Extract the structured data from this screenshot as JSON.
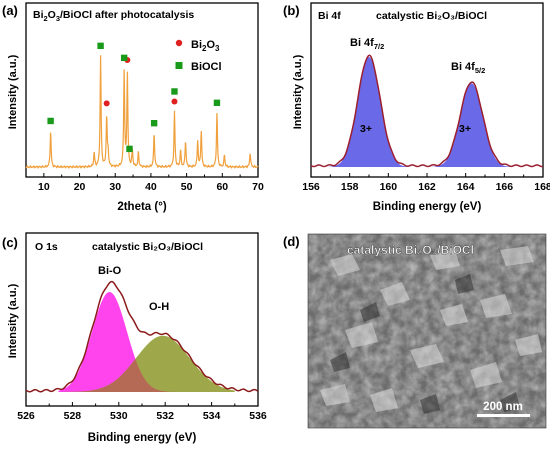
{
  "panels": {
    "a": {
      "label": "(a)",
      "title_main": "Bi",
      "title_sub1": "2",
      "title_mid": "O",
      "title_sub2": "3",
      "title_end": "/BiOCl after photocatalysis",
      "xlabel": "2theta (°)",
      "ylabel": "Intensity (a.u.)",
      "x_ticks": [
        "10",
        "20",
        "30",
        "40",
        "50",
        "60",
        "70"
      ],
      "legend": [
        {
          "marker": "circle",
          "label_main": "Bi",
          "label_sub1": "2",
          "label_mid": "O",
          "label_sub2": "3"
        },
        {
          "marker": "square",
          "label_main": "BiOCl"
        }
      ]
    },
    "b": {
      "label": "(b)",
      "header_left": "Bi 4f",
      "header_right": "catalystic Bi₂O₃/BiOCl",
      "xlabel": "Binding energy (eV)",
      "ylabel": "Intensity (a.u.)",
      "x_ticks": [
        "156",
        "158",
        "160",
        "162",
        "164",
        "166",
        "168"
      ],
      "peak1_main": "Bi 4f",
      "peak1_sub": "7/2",
      "peak2_main": "Bi 4f",
      "peak2_sub": "5/2",
      "area_label_1": "3+",
      "area_label_2": "3+"
    },
    "c": {
      "label": "(c)",
      "header_left": "O 1s",
      "header_right": "catalystic Bi₂O₃/BiOCl",
      "xlabel": "Binding energy (eV)",
      "ylabel": "Intensity (a.u.)",
      "x_ticks": [
        "526",
        "528",
        "530",
        "532",
        "534",
        "536"
      ],
      "peak1": "Bi-O",
      "peak2": "O-H"
    },
    "d": {
      "label": "(d)",
      "title": "catalystic Bi₂O₃/BiOCl",
      "scale_bar": "200 nm"
    }
  },
  "colors": {
    "xrd_line": "#f0a03c",
    "bi2o3_marker": "#e02020",
    "biocl_marker": "#1a9a1a",
    "bi4f_fill": "#6a6ae8",
    "bi4f_line": "#9a1f2f",
    "bio_fill": "#ff44ee",
    "oh_fill": "#9ea84a",
    "overlap_fill": "#b56a55",
    "envelope": "#8b1a1a"
  },
  "chart_data": [
    {
      "type": "line",
      "panel": "a",
      "title": "Bi2O3/BiOCl after photocatalysis",
      "xlabel": "2theta (°)",
      "ylabel": "Intensity (a.u.)",
      "xlim": [
        5,
        70
      ],
      "peaks": [
        {
          "x": 11.9,
          "h": 0.3
        },
        {
          "x": 24.1,
          "h": 0.12
        },
        {
          "x": 25.9,
          "h": 0.92
        },
        {
          "x": 27.6,
          "h": 0.42
        },
        {
          "x": 28.0,
          "h": 0.12
        },
        {
          "x": 32.5,
          "h": 0.8
        },
        {
          "x": 33.4,
          "h": 0.78
        },
        {
          "x": 34.8,
          "h": 0.14
        },
        {
          "x": 36.5,
          "h": 0.12
        },
        {
          "x": 40.9,
          "h": 0.28
        },
        {
          "x": 46.6,
          "h": 0.46
        },
        {
          "x": 48.3,
          "h": 0.14
        },
        {
          "x": 49.7,
          "h": 0.22
        },
        {
          "x": 53.1,
          "h": 0.22
        },
        {
          "x": 54.1,
          "h": 0.3
        },
        {
          "x": 58.5,
          "h": 0.45
        },
        {
          "x": 60.6,
          "h": 0.1
        },
        {
          "x": 67.8,
          "h": 0.12
        }
      ],
      "series": [
        {
          "name": "Bi2O3",
          "marker": "circle",
          "x": [
            27.6,
            33.4,
            46.6
          ]
        },
        {
          "name": "BiOCl",
          "marker": "square",
          "x": [
            11.9,
            25.9,
            32.5,
            34.0,
            40.9,
            46.6,
            58.5
          ]
        }
      ]
    },
    {
      "type": "area",
      "panel": "b",
      "xlabel": "Binding energy (eV)",
      "ylabel": "Intensity (a.u.)",
      "xlim": [
        156,
        168
      ],
      "series": [
        {
          "name": "Bi 4f7/2",
          "center": 159.0,
          "height": 0.88,
          "sigma": 0.58
        },
        {
          "name": "Bi 4f5/2",
          "center": 164.3,
          "height": 0.67,
          "sigma": 0.58
        }
      ]
    },
    {
      "type": "area",
      "panel": "c",
      "xlabel": "Binding energy (eV)",
      "ylabel": "Intensity (a.u.)",
      "xlim": [
        526,
        536
      ],
      "series": [
        {
          "name": "Bi-O",
          "center": 529.6,
          "height": 0.8,
          "sigma": 0.75
        },
        {
          "name": "O-H",
          "center": 531.9,
          "height": 0.45,
          "sigma": 1.15
        }
      ]
    }
  ]
}
